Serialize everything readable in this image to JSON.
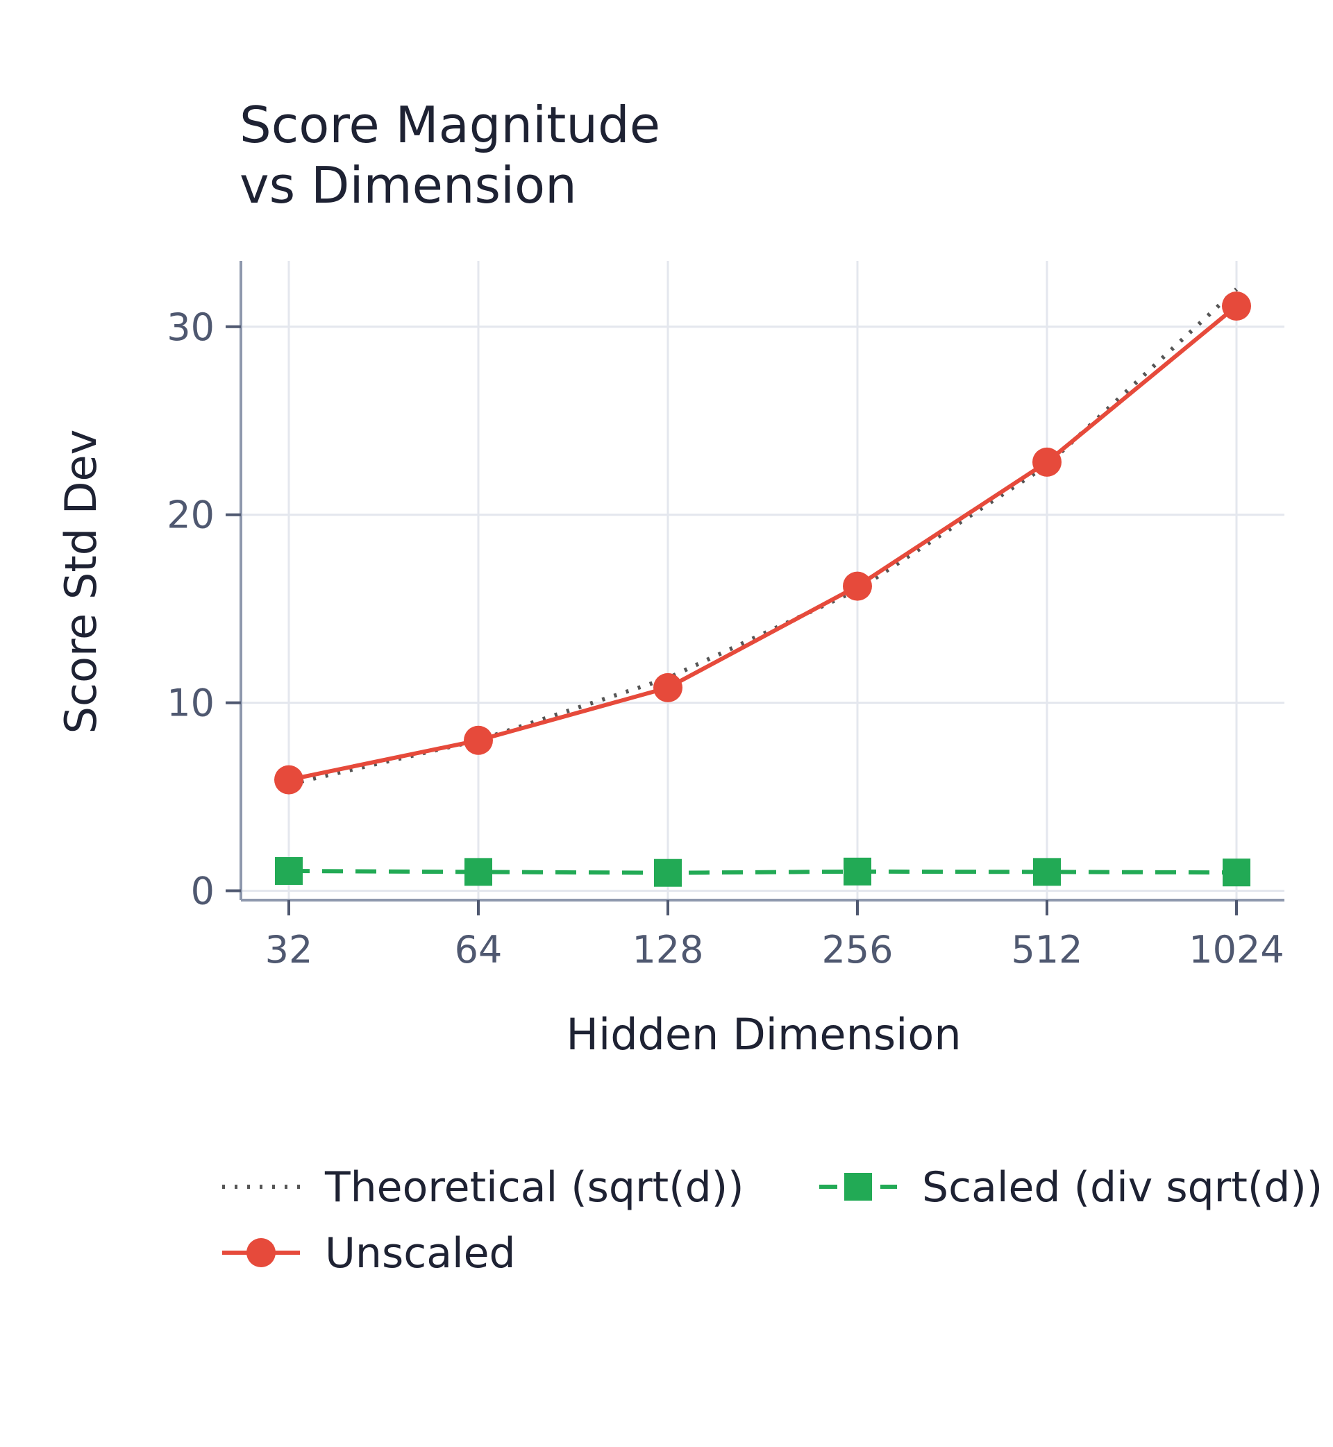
{
  "chart_data": {
    "type": "line",
    "title_lines": [
      "Score Magnitude",
      "vs Dimension"
    ],
    "xlabel": "Hidden Dimension",
    "ylabel": "Score Std Dev",
    "x": [
      "32",
      "64",
      "128",
      "256",
      "512",
      "1024"
    ],
    "x_scale": "log2",
    "ylim": [
      -0.5,
      33.5
    ],
    "yticks": [
      0,
      10,
      20,
      30
    ],
    "grid": true,
    "legend": "bottom",
    "series": [
      {
        "name": "Theoretical (sqrt(d))",
        "values": [
          5.66,
          8.0,
          11.31,
          16.0,
          22.63,
          32.0
        ],
        "color": "#555555",
        "style": "dotted",
        "marker": "none"
      },
      {
        "name": "Unscaled",
        "values": [
          5.9,
          8.0,
          10.8,
          16.2,
          22.8,
          31.1
        ],
        "color": "#e64a3b",
        "style": "solid",
        "marker": "circle"
      },
      {
        "name": "Scaled (div sqrt(d))",
        "values": [
          1.05,
          1.0,
          0.95,
          1.02,
          1.0,
          0.97
        ],
        "color": "#22aa55",
        "style": "dashed",
        "marker": "square"
      }
    ]
  }
}
